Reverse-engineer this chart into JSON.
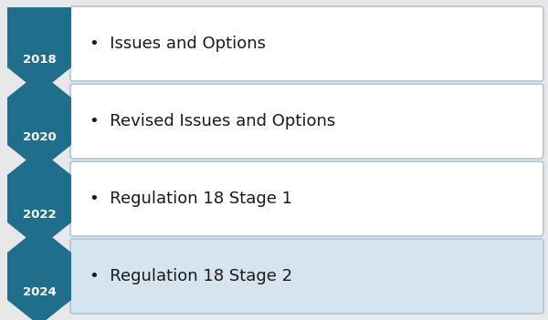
{
  "background_color": "#e8e8e8",
  "rows": [
    {
      "year": "2018",
      "text": "Issues and Options",
      "box_color": "#ffffff"
    },
    {
      "year": "2020",
      "text": "Revised Issues and Options",
      "box_color": "#ffffff"
    },
    {
      "year": "2022",
      "text": "Regulation 18 Stage 1",
      "box_color": "#ffffff"
    },
    {
      "year": "2024",
      "text": "Regulation 18 Stage 2",
      "box_color": "#d6e4f0"
    }
  ],
  "arrow_color": "#1f6e8c",
  "arrow_text_color": "#ffffff",
  "box_border_color": "#aec6d8",
  "text_color": "#1a1a1a",
  "year_fontsize": 9.5,
  "text_fontsize": 13,
  "fig_width": 6.0,
  "fig_height": 3.51,
  "dpi": 100
}
